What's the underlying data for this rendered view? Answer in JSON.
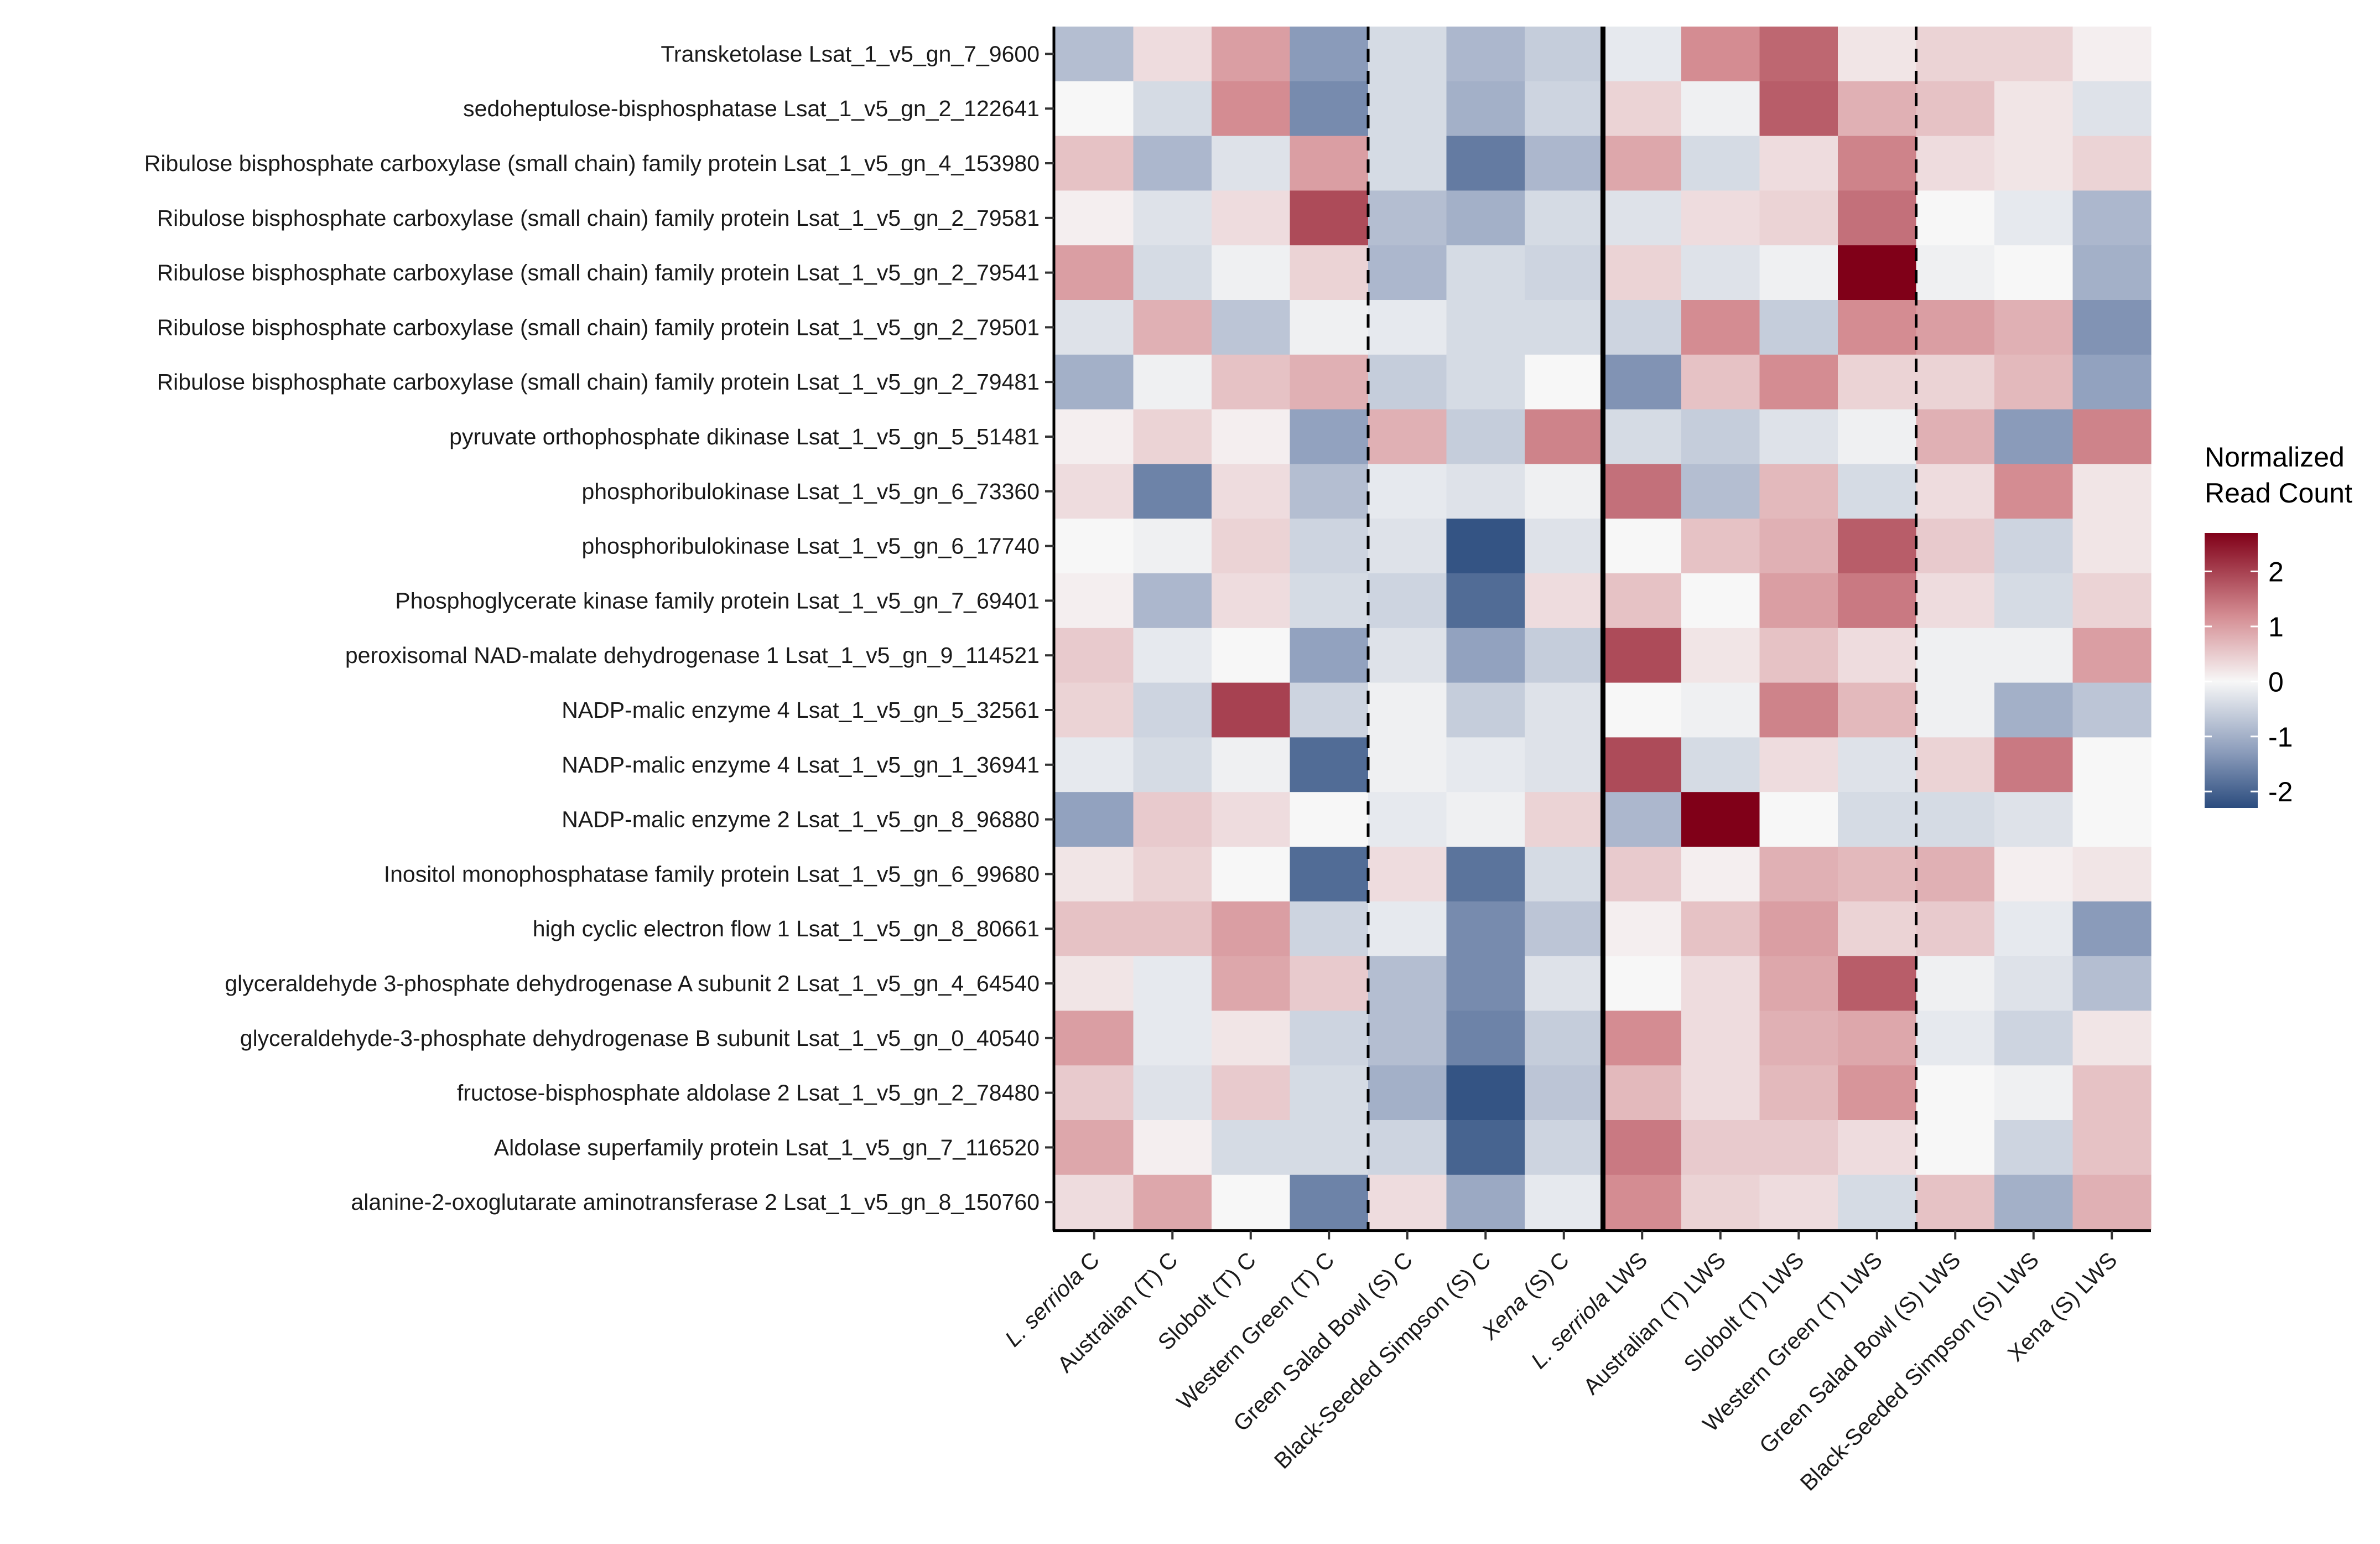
{
  "chart_data": {
    "type": "heatmap",
    "title": "",
    "xlabel": "",
    "ylabel": "",
    "legend": {
      "title_lines": [
        "Normalized",
        "Read Count"
      ],
      "ticks": [
        "2",
        "1",
        "0",
        "-1",
        "-2"
      ],
      "tick_values": [
        2,
        1,
        0,
        -1,
        -2
      ],
      "position": "right",
      "range": [
        -2.3,
        2.7
      ]
    },
    "colors": {
      "low": "#2b4c7e",
      "mid": "#f7f7f7",
      "high": "#800018"
    },
    "columns": [
      {
        "label": "L. serriola C",
        "italic": "L. serriola",
        "rest": " C"
      },
      {
        "label": "Australian (T) C",
        "italic": "",
        "rest": "Australian (T) C"
      },
      {
        "label": "Slobolt (T) C",
        "italic": "",
        "rest": "Slobolt (T) C"
      },
      {
        "label": "Western Green (T) C",
        "italic": "",
        "rest": "Western Green (T) C"
      },
      {
        "label": "Green Salad Bowl (S) C",
        "italic": "",
        "rest": "Green Salad Bowl (S) C"
      },
      {
        "label": "Black-Seeded Simpson (S) C",
        "italic": "",
        "rest": "Black-Seeded Simpson (S) C"
      },
      {
        "label": "Xena (S) C",
        "italic": "Xena",
        "rest": " (S) C"
      },
      {
        "label": "L. serriola LWS",
        "italic": "L. serriola",
        "rest": " LWS"
      },
      {
        "label": "Australian (T) LWS",
        "italic": "",
        "rest": "Australian (T) LWS"
      },
      {
        "label": "Slobolt (T) LWS",
        "italic": "",
        "rest": "Slobolt (T) LWS"
      },
      {
        "label": "Western Green (T) LWS",
        "italic": "",
        "rest": "Western Green (T) LWS"
      },
      {
        "label": "Green Salad Bowl (S) LWS",
        "italic": "",
        "rest": "Green Salad Bowl (S) LWS"
      },
      {
        "label": "Black-Seeded Simpson (S) LWS",
        "italic": "",
        "rest": "Black-Seeded Simpson (S) LWS"
      },
      {
        "label": "Xena (S) LWS",
        "italic": "",
        "rest": "Xena (S) LWS"
      }
    ],
    "rows": [
      "Transketolase Lsat_1_v5_gn_7_9600",
      "sedoheptulose-bisphosphatase Lsat_1_v5_gn_2_122641",
      "Ribulose bisphosphate carboxylase (small chain) family protein Lsat_1_v5_gn_4_153980",
      "Ribulose bisphosphate carboxylase (small chain) family protein Lsat_1_v5_gn_2_79581",
      "Ribulose bisphosphate carboxylase (small chain) family protein Lsat_1_v5_gn_2_79541",
      "Ribulose bisphosphate carboxylase (small chain) family protein Lsat_1_v5_gn_2_79501",
      "Ribulose bisphosphate carboxylase (small chain) family protein Lsat_1_v5_gn_2_79481",
      "pyruvate orthophosphate dikinase Lsat_1_v5_gn_5_51481",
      "phosphoribulokinase Lsat_1_v5_gn_6_73360",
      "phosphoribulokinase Lsat_1_v5_gn_6_17740",
      "Phosphoglycerate kinase family protein Lsat_1_v5_gn_7_69401",
      "peroxisomal NAD-malate dehydrogenase 1 Lsat_1_v5_gn_9_114521",
      "NADP-malic enzyme 4 Lsat_1_v5_gn_5_32561",
      "NADP-malic enzyme 4 Lsat_1_v5_gn_1_36941",
      "NADP-malic enzyme 2 Lsat_1_v5_gn_8_96880",
      "Inositol monophosphatase family protein Lsat_1_v5_gn_6_99680",
      "high cyclic electron flow 1 Lsat_1_v5_gn_8_80661",
      "glyceraldehyde 3-phosphate dehydrogenase A subunit 2 Lsat_1_v5_gn_4_64540",
      "glyceraldehyde-3-phosphate dehydrogenase B subunit Lsat_1_v5_gn_0_40540",
      "fructose-bisphosphate aldolase 2 Lsat_1_v5_gn_2_78480",
      "Aldolase superfamily protein Lsat_1_v5_gn_7_116520",
      "alanine-2-oxoglutarate aminotransferase 2 Lsat_1_v5_gn_8_150760"
    ],
    "values": [
      [
        -0.8,
        0.3,
        1.0,
        -1.3,
        -0.4,
        -0.9,
        -0.6,
        -0.2,
        1.2,
        1.6,
        0.2,
        0.4,
        0.4,
        0.1
      ],
      [
        0.0,
        -0.4,
        1.2,
        -1.5,
        -0.4,
        -1.0,
        -0.5,
        0.4,
        -0.1,
        1.7,
        0.8,
        0.6,
        0.2,
        -0.3
      ],
      [
        0.6,
        -0.9,
        -0.3,
        1.0,
        -0.4,
        -1.7,
        -0.9,
        0.9,
        -0.4,
        0.3,
        1.3,
        0.3,
        0.2,
        0.4
      ],
      [
        0.1,
        -0.3,
        0.3,
        1.9,
        -0.8,
        -1.0,
        -0.4,
        -0.3,
        0.3,
        0.4,
        1.5,
        0.0,
        -0.2,
        -0.9
      ],
      [
        1.0,
        -0.4,
        -0.1,
        0.4,
        -0.9,
        -0.4,
        -0.5,
        0.4,
        -0.3,
        -0.1,
        2.7,
        -0.1,
        0.0,
        -1.0
      ],
      [
        -0.3,
        0.8,
        -0.7,
        -0.1,
        -0.2,
        -0.4,
        -0.4,
        -0.5,
        1.2,
        -0.6,
        1.2,
        1.0,
        0.8,
        -1.4
      ],
      [
        -1.0,
        -0.1,
        0.6,
        0.8,
        -0.6,
        -0.4,
        0.0,
        -1.4,
        0.6,
        1.2,
        0.4,
        0.4,
        0.7,
        -1.2
      ],
      [
        0.1,
        0.4,
        0.1,
        -1.2,
        0.8,
        -0.6,
        1.3,
        -0.4,
        -0.6,
        -0.3,
        -0.1,
        0.8,
        -1.3,
        1.3
      ],
      [
        0.3,
        -1.6,
        0.3,
        -0.8,
        -0.2,
        -0.3,
        -0.1,
        1.5,
        -0.8,
        0.7,
        -0.4,
        0.3,
        1.2,
        0.2
      ],
      [
        0.0,
        -0.1,
        0.4,
        -0.5,
        -0.3,
        -2.2,
        -0.3,
        0.0,
        0.6,
        0.8,
        1.7,
        0.5,
        -0.5,
        0.2
      ],
      [
        0.1,
        -0.9,
        0.3,
        -0.4,
        -0.5,
        -1.9,
        0.3,
        0.6,
        0.0,
        1.0,
        1.4,
        0.3,
        -0.4,
        0.4
      ],
      [
        0.5,
        -0.2,
        0.0,
        -1.2,
        -0.3,
        -1.2,
        -0.6,
        1.9,
        0.2,
        0.6,
        0.3,
        -0.1,
        -0.1,
        1.0
      ],
      [
        0.4,
        -0.5,
        2.0,
        -0.5,
        -0.1,
        -0.6,
        -0.3,
        0.0,
        -0.1,
        1.3,
        0.7,
        -0.1,
        -1.0,
        -0.7
      ],
      [
        -0.2,
        -0.4,
        -0.1,
        -1.9,
        -0.1,
        -0.2,
        -0.3,
        1.9,
        -0.4,
        0.3,
        -0.3,
        0.4,
        1.4,
        0.0
      ],
      [
        -1.2,
        0.5,
        0.3,
        0.0,
        -0.2,
        -0.1,
        0.4,
        -0.9,
        2.7,
        0.0,
        -0.4,
        -0.4,
        -0.3,
        0.0
      ],
      [
        0.2,
        0.4,
        0.0,
        -1.9,
        0.3,
        -1.8,
        -0.4,
        0.5,
        0.1,
        0.8,
        0.7,
        0.8,
        0.1,
        0.2
      ],
      [
        0.6,
        0.6,
        1.0,
        -0.5,
        -0.2,
        -1.5,
        -0.7,
        0.1,
        0.6,
        1.0,
        0.4,
        0.5,
        -0.2,
        -1.3
      ],
      [
        0.2,
        -0.2,
        0.9,
        0.5,
        -0.8,
        -1.5,
        -0.3,
        0.0,
        0.3,
        0.9,
        1.7,
        -0.1,
        -0.3,
        -0.8
      ],
      [
        1.0,
        -0.2,
        0.2,
        -0.5,
        -0.8,
        -1.6,
        -0.6,
        1.2,
        0.3,
        0.8,
        0.9,
        -0.2,
        -0.5,
        0.2
      ],
      [
        0.5,
        -0.3,
        0.5,
        -0.4,
        -1.0,
        -2.2,
        -0.7,
        0.7,
        0.3,
        0.7,
        1.1,
        0.0,
        -0.1,
        0.6
      ],
      [
        0.9,
        0.1,
        -0.4,
        -0.4,
        -0.5,
        -2.0,
        -0.5,
        1.4,
        0.5,
        0.5,
        0.3,
        0.0,
        -0.5,
        0.6
      ],
      [
        0.3,
        0.9,
        0.0,
        -1.6,
        0.3,
        -1.1,
        -0.2,
        1.2,
        0.4,
        0.3,
        -0.4,
        0.6,
        -1.0,
        0.8
      ]
    ],
    "separators": [
      {
        "after_col": 4,
        "style": "dashed"
      },
      {
        "after_col": 7,
        "style": "solid"
      },
      {
        "after_col": 11,
        "style": "dashed"
      }
    ]
  }
}
